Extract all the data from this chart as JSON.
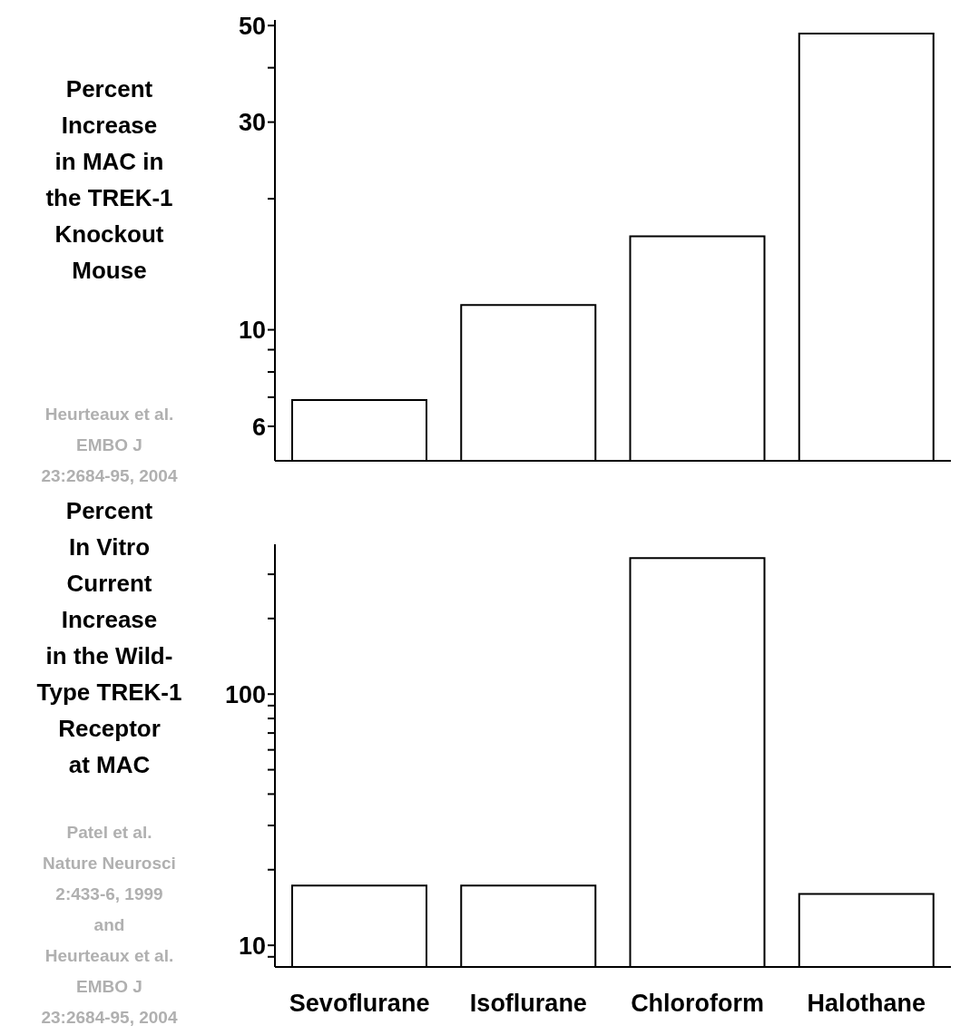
{
  "chart_data": [
    {
      "type": "bar",
      "ylabel": "Percent\nIncrease\nin MAC in\nthe TREK-1\nKnockout\nMouse",
      "annotations": [
        "Heurteaux et al.\nEMBO J\n23:2684-95, 2004"
      ],
      "categories": [
        null,
        null,
        null,
        null
      ],
      "values": [
        6.9,
        11.4,
        16.4,
        47.9
      ],
      "color": "#ffffff",
      "log": true,
      "ylim": [
        5,
        51.5
      ],
      "yticks": [
        6,
        {
          "value": 7,
          "label": null
        },
        {
          "value": 8,
          "label": null
        },
        {
          "value": 9,
          "label": null
        },
        10,
        {
          "value": 20,
          "label": null
        },
        30,
        {
          "value": 40,
          "label": null
        },
        50
      ],
      "tick_labels": "y"
    },
    {
      "type": "bar",
      "ylabel": "Percent\nIn Vitro\nCurrent\nIncrease\nin the Wild-\nType TREK-1\nReceptor\nat MAC",
      "annotations": [
        "Patel et al.\nNature Neurosci\n2:433-6, 1999\nand\nHeurteaux et al.\nEMBO J\n23:2684-95, 2004"
      ],
      "categories": [
        "Sevoflurane",
        "Isoflurane",
        "Chloroform",
        "Halothane"
      ],
      "values": [
        17.3,
        17.3,
        348,
        16.0
      ],
      "color": "#ffffff",
      "log": true,
      "ylim": [
        8.2,
        395
      ],
      "yticks": [
        {
          "value": 9,
          "label": null
        },
        10,
        {
          "value": 20,
          "label": null
        },
        {
          "value": 30,
          "label": null
        },
        {
          "value": 40,
          "label": null
        },
        {
          "value": 50,
          "label": null
        },
        {
          "value": 60,
          "label": null
        },
        {
          "value": 70,
          "label": null
        },
        {
          "value": 80,
          "label": null
        },
        {
          "value": 90,
          "label": null
        },
        100,
        {
          "value": 200,
          "label": null
        },
        {
          "value": 300,
          "label": null
        }
      ]
    }
  ]
}
